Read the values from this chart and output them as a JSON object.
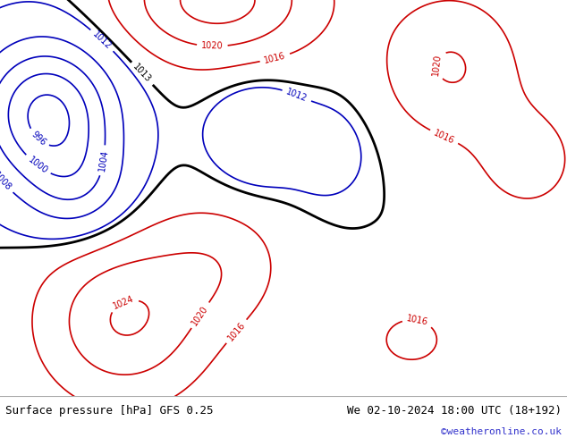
{
  "title_left": "Surface pressure [hPa] GFS 0.25",
  "title_right": "We 02-10-2024 18:00 UTC (18+192)",
  "copyright": "©weatheronline.co.uk",
  "footer_bg": "#e0e0e0",
  "map_bg_sea": "#f2f2f2",
  "map_bg_land_green": "#b8d9a0",
  "map_bg_land_gray": "#b0b0b0",
  "contour_red": "#cc0000",
  "contour_blue": "#0000bb",
  "contour_black": "#000000",
  "label_fontsize": 7,
  "footer_fontsize": 9,
  "copyright_fontsize": 8,
  "copyright_color": "#3333cc",
  "fig_width": 6.34,
  "fig_height": 4.9,
  "dpi": 100,
  "lon_min": -28,
  "lon_max": 45,
  "lat_min": 30,
  "lat_max": 72
}
